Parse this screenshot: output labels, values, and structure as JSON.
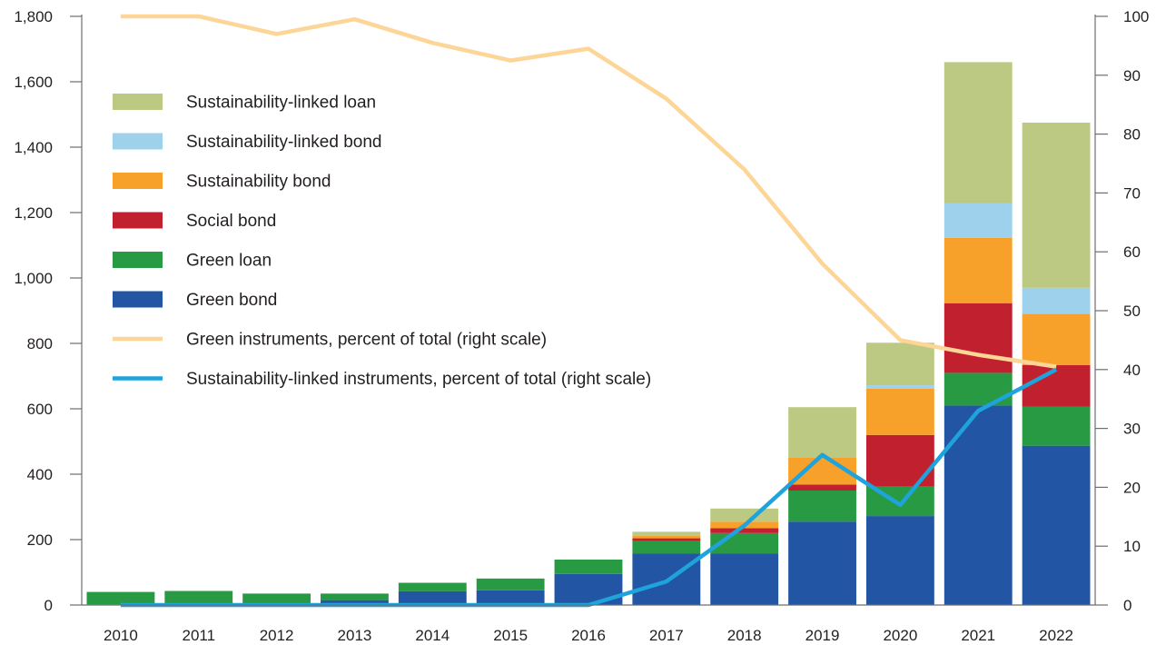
{
  "chart_data": {
    "type": "bar",
    "stacked": true,
    "categories": [
      "2010",
      "2011",
      "2012",
      "2013",
      "2014",
      "2015",
      "2016",
      "2017",
      "2018",
      "2019",
      "2020",
      "2021",
      "2022"
    ],
    "series": [
      {
        "name": "Green bond",
        "type": "bar",
        "color": "#2255a4",
        "values": [
          2,
          3,
          3,
          15,
          42,
          45,
          95,
          158,
          158,
          255,
          272,
          610,
          487
        ]
      },
      {
        "name": "Green loan",
        "type": "bar",
        "color": "#299a44",
        "values": [
          38,
          40,
          32,
          20,
          26,
          36,
          44,
          38,
          62,
          95,
          90,
          100,
          120
        ]
      },
      {
        "name": "Social bond",
        "type": "bar",
        "color": "#c1202f",
        "values": [
          0,
          0,
          0,
          0,
          0,
          0,
          0,
          8,
          15,
          18,
          158,
          213,
          127
        ]
      },
      {
        "name": "Sustainability bond",
        "type": "bar",
        "color": "#f8a12a",
        "values": [
          0,
          0,
          0,
          0,
          0,
          0,
          0,
          8,
          20,
          82,
          142,
          200,
          156
        ]
      },
      {
        "name": "Sustainability-linked bond",
        "type": "bar",
        "color": "#9ed1eb",
        "values": [
          0,
          0,
          0,
          0,
          0,
          0,
          0,
          0,
          0,
          0,
          10,
          105,
          80
        ]
      },
      {
        "name": "Sustainability-linked loan",
        "type": "bar",
        "color": "#bcc982",
        "values": [
          0,
          0,
          0,
          0,
          0,
          0,
          0,
          12,
          40,
          155,
          130,
          432,
          505
        ]
      },
      {
        "name": "Green instruments, percent of total (right scale)",
        "type": "line",
        "axis": "right",
        "color": "#fcd597",
        "values": [
          100,
          100,
          97,
          99.5,
          95.5,
          92.5,
          94.5,
          86,
          74,
          58,
          45,
          42.5,
          40.5
        ]
      },
      {
        "name": "Sustainability-linked instruments, percent of total (right scale)",
        "type": "line",
        "axis": "right",
        "color": "#1ea3dc",
        "values": [
          0,
          0,
          0,
          0,
          0,
          0,
          0,
          4,
          13.5,
          25.5,
          17,
          33,
          40
        ]
      }
    ],
    "y_left": {
      "min": 0,
      "max": 1800,
      "ticks": [
        0,
        200,
        400,
        600,
        800,
        1000,
        1200,
        1400,
        1600,
        1800
      ],
      "tick_labels": [
        "0",
        "200",
        "400",
        "600",
        "800",
        "1,000",
        "1,200",
        "1,400",
        "1,600",
        "1,800"
      ]
    },
    "y_right": {
      "min": 0,
      "max": 100,
      "ticks": [
        0,
        10,
        20,
        30,
        40,
        50,
        60,
        70,
        80,
        90,
        100
      ],
      "tick_labels": [
        "0",
        "10",
        "20",
        "30",
        "40",
        "50",
        "60",
        "70",
        "80",
        "90",
        "100"
      ]
    },
    "legend": {
      "placement": "top-left",
      "order": [
        "Sustainability-linked loan",
        "Sustainability-linked bond",
        "Sustainability bond",
        "Social bond",
        "Green loan",
        "Green bond",
        "Green instruments, percent of total (right scale)",
        "Sustainability-linked instruments, percent of total (right scale)"
      ]
    },
    "grid": false,
    "title": "",
    "xlabel": "",
    "ylabel": ""
  }
}
